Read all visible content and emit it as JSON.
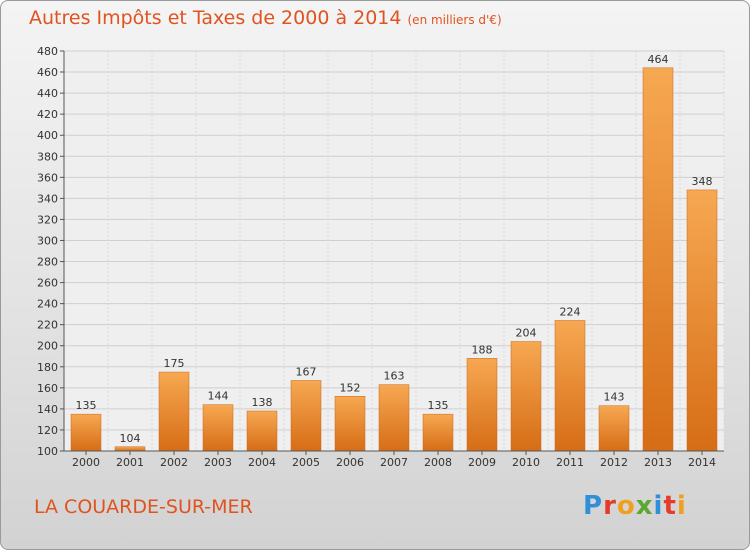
{
  "header": {
    "title": "Autres Impôts et Taxes de 2000 à 2014",
    "unit": "(en milliers d'€)"
  },
  "footer": {
    "location": "LA COUARDE-SUR-MER",
    "logo_text": "Proxiti"
  },
  "colors": {
    "title": "#e0531f",
    "bar_light": "#f7a852",
    "bar_dark": "#d66d16"
  },
  "chart_data": {
    "type": "bar",
    "title": "Autres Impôts et Taxes de 2000 à 2014",
    "subtitle": "(en milliers d'€)",
    "categories": [
      "2000",
      "2001",
      "2002",
      "2003",
      "2004",
      "2005",
      "2006",
      "2007",
      "2008",
      "2009",
      "2010",
      "2011",
      "2012",
      "2013",
      "2014"
    ],
    "values": [
      135,
      104,
      175,
      144,
      138,
      167,
      152,
      163,
      135,
      188,
      204,
      224,
      143,
      464,
      348
    ],
    "ylim": [
      100,
      480
    ],
    "yticks": [
      100,
      120,
      140,
      160,
      180,
      200,
      220,
      240,
      260,
      280,
      300,
      320,
      340,
      360,
      380,
      400,
      420,
      440,
      460,
      480
    ],
    "grid": true,
    "legend": "none"
  }
}
